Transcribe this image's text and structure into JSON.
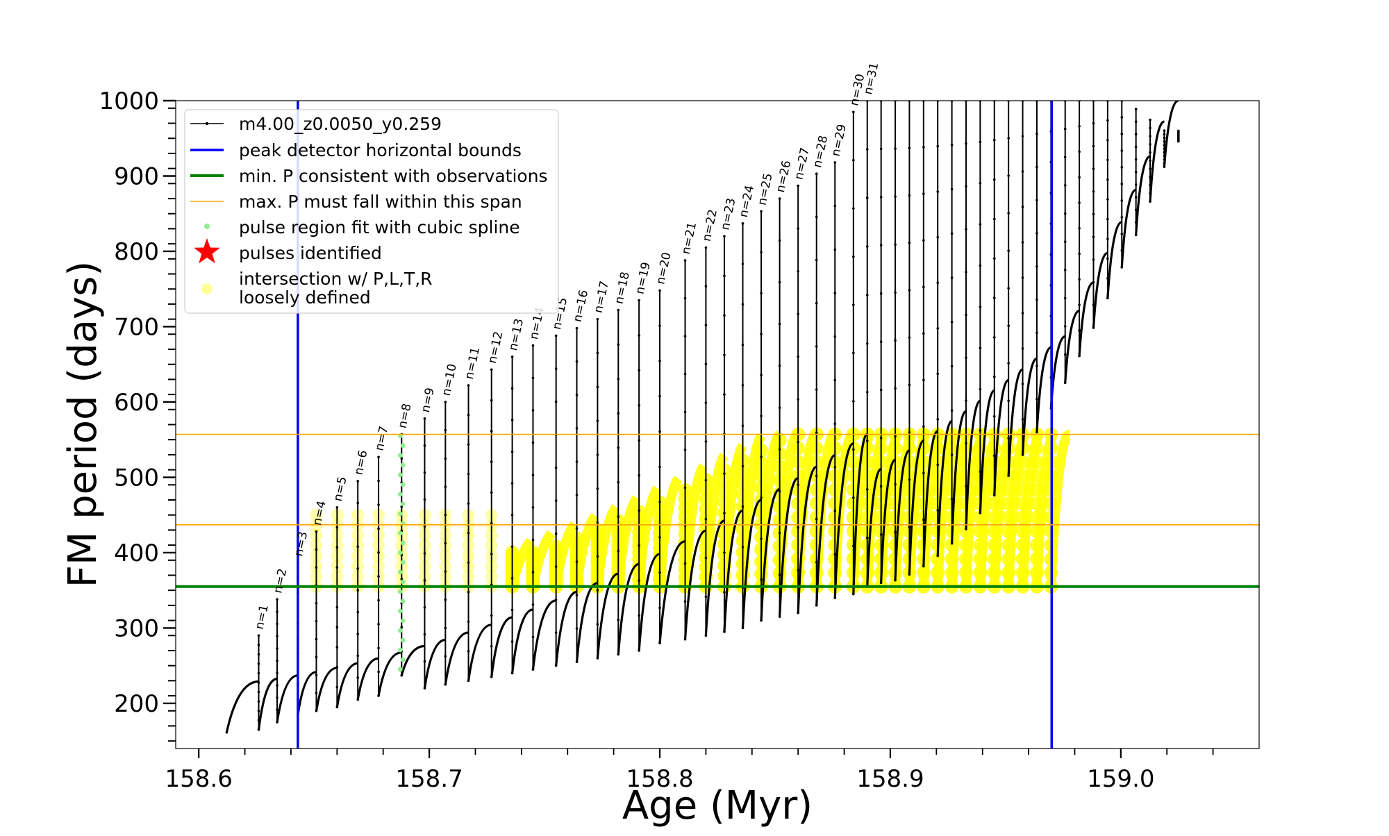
{
  "chart_data": {
    "type": "line",
    "xlabel": "Age (Myr)",
    "ylabel": "FM period (days)",
    "xlim": [
      158.59,
      159.06
    ],
    "ylim": [
      140,
      1000
    ],
    "x_ticks": [
      158.6,
      158.7,
      158.8,
      158.9,
      159.0
    ],
    "x_tick_labels": [
      "158.6",
      "158.7",
      "158.8",
      "158.9",
      "159.0"
    ],
    "y_ticks": [
      200,
      300,
      400,
      500,
      600,
      700,
      800,
      900,
      1000
    ],
    "y_tick_labels": [
      "200",
      "300",
      "400",
      "500",
      "600",
      "700",
      "800",
      "900",
      "1000"
    ],
    "colors": {
      "track": "#000000",
      "peak_bounds": "#0000ff",
      "min_period": "#008000",
      "max_period_span": "#ffa500",
      "spline_fit": "#90ee90",
      "pulses": "#ff0000",
      "intersection": "#ffff00"
    },
    "legend": {
      "position": "upper-left",
      "entries": [
        {
          "label": "m4.00_z0.0050_y0.259",
          "marker": "line-dot",
          "color": "#000000"
        },
        {
          "label": "peak detector horizontal bounds",
          "marker": "line",
          "color": "#0000ff"
        },
        {
          "label": "min. P consistent with observations",
          "marker": "line",
          "color": "#008000"
        },
        {
          "label": "max. P must fall within this span",
          "marker": "thin-line",
          "color": "#ffa500"
        },
        {
          "label": "pulse region fit with cubic spline",
          "marker": "dot",
          "color": "#90ee90"
        },
        {
          "label": "pulses identified",
          "marker": "star",
          "color": "#ff0000"
        },
        {
          "label": "intersection w/ P,L,T,R",
          "label2": "loosely defined",
          "marker": "big-dot",
          "color": "#ffff99"
        }
      ]
    },
    "vertical_lines": [
      {
        "name": "peak detector horizontal bounds",
        "x": 158.643
      },
      {
        "name": "peak detector horizontal bounds",
        "x": 158.97
      }
    ],
    "horizontal_lines": [
      {
        "name": "min. P consistent with observations",
        "y": 355
      },
      {
        "name": "max. P must fall within this span",
        "y": 437
      },
      {
        "name": "max. P must fall within this span",
        "y": 557
      }
    ],
    "pulses": [
      {
        "n": "n=1",
        "x": 158.626,
        "peak": 290,
        "base": 165
      },
      {
        "n": "n=2",
        "x": 158.634,
        "peak": 338,
        "base": 175
      },
      {
        "n": "n=3",
        "x": 158.643,
        "peak": 387,
        "base": 185
      },
      {
        "n": "n=4",
        "x": 158.651,
        "peak": 428,
        "base": 190
      },
      {
        "n": "n=5",
        "x": 158.66,
        "peak": 460,
        "base": 195
      },
      {
        "n": "n=6",
        "x": 158.669,
        "peak": 495,
        "base": 205
      },
      {
        "n": "n=7",
        "x": 158.678,
        "peak": 527,
        "base": 210
      },
      {
        "n": "n=8",
        "x": 158.688,
        "peak": 557,
        "base": 237
      },
      {
        "n": "n=9",
        "x": 158.698,
        "peak": 578,
        "base": 220
      },
      {
        "n": "n=10",
        "x": 158.707,
        "peak": 600,
        "base": 225
      },
      {
        "n": "n=11",
        "x": 158.717,
        "peak": 622,
        "base": 230
      },
      {
        "n": "n=12",
        "x": 158.727,
        "peak": 643,
        "base": 235
      },
      {
        "n": "n=13",
        "x": 158.736,
        "peak": 660,
        "base": 240
      },
      {
        "n": "n=14",
        "x": 158.745,
        "peak": 675,
        "base": 245
      },
      {
        "n": "n=15",
        "x": 158.755,
        "peak": 688,
        "base": 250
      },
      {
        "n": "n=16",
        "x": 158.764,
        "peak": 698,
        "base": 255
      },
      {
        "n": "n=17",
        "x": 158.773,
        "peak": 710,
        "base": 260
      },
      {
        "n": "n=18",
        "x": 158.782,
        "peak": 722,
        "base": 265
      },
      {
        "n": "n=19",
        "x": 158.791,
        "peak": 735,
        "base": 270
      },
      {
        "n": "n=20",
        "x": 158.8,
        "peak": 748,
        "base": 280
      },
      {
        "n": "n=21",
        "x": 158.811,
        "peak": 788,
        "base": 285
      },
      {
        "n": "n=22",
        "x": 158.82,
        "peak": 805,
        "base": 290
      },
      {
        "n": "n=23",
        "x": 158.828,
        "peak": 820,
        "base": 295
      },
      {
        "n": "n=24",
        "x": 158.836,
        "peak": 837,
        "base": 300
      },
      {
        "n": "n=25",
        "x": 158.844,
        "peak": 853,
        "base": 310
      },
      {
        "n": "n=26",
        "x": 158.852,
        "peak": 870,
        "base": 315
      },
      {
        "n": "n=27",
        "x": 158.86,
        "peak": 887,
        "base": 320
      },
      {
        "n": "n=28",
        "x": 158.868,
        "peak": 903,
        "base": 330
      },
      {
        "n": "n=29",
        "x": 158.876,
        "peak": 918,
        "base": 340
      },
      {
        "n": "n=30",
        "x": 158.884,
        "peak": 985,
        "base": 345
      },
      {
        "n": "n=31",
        "x": 158.89,
        "peak": 1000,
        "base": 355
      }
    ],
    "late_pulses_age_range": [
      158.896,
      159.025
    ]
  }
}
